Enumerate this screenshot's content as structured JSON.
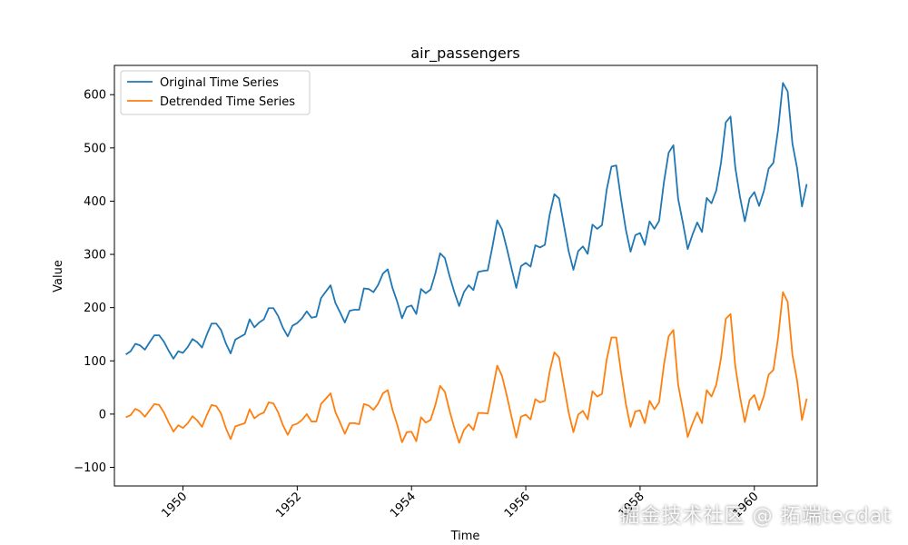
{
  "chart_data": {
    "type": "line",
    "title": "air_passengers",
    "xlabel": "Time",
    "ylabel": "Value",
    "x_start": "1949-01",
    "x_frequency": "monthly",
    "xlim": [
      1948.8,
      1961.1
    ],
    "ylim": [
      -135,
      655
    ],
    "xticks": [
      1950,
      1952,
      1954,
      1956,
      1958,
      1960
    ],
    "yticks": [
      -100,
      0,
      100,
      200,
      300,
      400,
      500,
      600
    ],
    "legend_position": "top-left",
    "series": [
      {
        "name": "Original Time Series",
        "color": "#1f77b4",
        "values": [
          112,
          118,
          132,
          129,
          121,
          135,
          148,
          148,
          136,
          119,
          104,
          118,
          115,
          126,
          141,
          135,
          125,
          149,
          170,
          170,
          158,
          133,
          114,
          140,
          145,
          150,
          178,
          163,
          172,
          178,
          199,
          199,
          184,
          162,
          146,
          166,
          171,
          180,
          193,
          181,
          183,
          218,
          230,
          242,
          209,
          191,
          172,
          194,
          196,
          196,
          236,
          235,
          229,
          243,
          264,
          272,
          237,
          211,
          180,
          201,
          204,
          188,
          235,
          227,
          234,
          264,
          302,
          293,
          259,
          229,
          203,
          229,
          242,
          233,
          267,
          269,
          270,
          315,
          364,
          347,
          312,
          274,
          237,
          278,
          284,
          277,
          317,
          313,
          318,
          374,
          413,
          405,
          355,
          306,
          271,
          306,
          315,
          301,
          356,
          348,
          355,
          422,
          465,
          467,
          404,
          347,
          305,
          336,
          340,
          318,
          362,
          348,
          363,
          435,
          491,
          505,
          404,
          359,
          310,
          337,
          360,
          342,
          406,
          396,
          420,
          472,
          548,
          559,
          463,
          407,
          362,
          405,
          417,
          391,
          419,
          461,
          472,
          535,
          622,
          606,
          508,
          461,
          390,
          432
        ]
      },
      {
        "name": "Detrended Time Series",
        "color": "#ff7f0e",
        "values": [
          -6,
          -2,
          10,
          5,
          -5,
          7,
          19,
          17,
          3,
          -16,
          -33,
          -21,
          -26,
          -17,
          -4,
          -12,
          -24,
          -2,
          17,
          15,
          1,
          -26,
          -47,
          -23,
          -20,
          -17,
          9,
          -8,
          -1,
          3,
          22,
          20,
          3,
          -21,
          -39,
          -21,
          -18,
          -11,
          0,
          -14,
          -14,
          19,
          29,
          39,
          4,
          -16,
          -37,
          -17,
          -17,
          -19,
          19,
          16,
          8,
          20,
          39,
          45,
          8,
          -20,
          -53,
          -34,
          -33,
          -51,
          -6,
          -16,
          -11,
          17,
          53,
          42,
          6,
          -26,
          -54,
          -30,
          -19,
          -30,
          2,
          2,
          1,
          44,
          91,
          72,
          35,
          -5,
          -44,
          -5,
          -1,
          -10,
          28,
          22,
          25,
          79,
          116,
          106,
          54,
          3,
          -34,
          -1,
          6,
          -10,
          43,
          33,
          38,
          103,
          144,
          144,
          79,
          20,
          -24,
          5,
          7,
          -17,
          25,
          9,
          22,
          92,
          146,
          158,
          55,
          8,
          -43,
          -18,
          3,
          -17,
          45,
          33,
          55,
          105,
          179,
          188,
          90,
          32,
          -15,
          26,
          36,
          8,
          34,
          74,
          83,
          144,
          229,
          211,
          111,
          62,
          -11,
          29
        ]
      }
    ]
  },
  "watermark": "掘金技术社区 @ 拓端tecdat"
}
